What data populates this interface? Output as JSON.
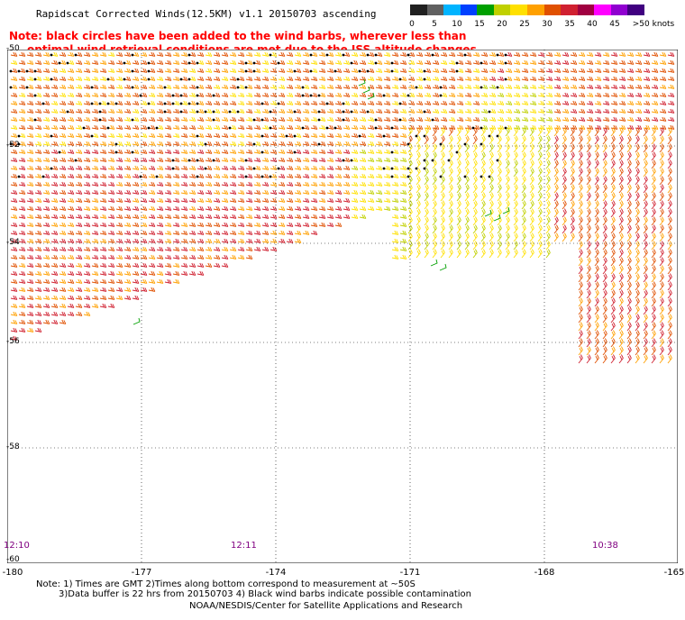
{
  "header": {
    "title": "Rapidscat Corrected Winds(12.5KM) v1.1 20150703 ascending",
    "note_line1": "Note: black circles have been added to the wind barbs, wherever less than",
    "note_line2": "optimal wind retrieval conditions are met due to the ISS altitude changes"
  },
  "scale": {
    "labels": [
      "0",
      "5",
      "10",
      "15",
      "20",
      "25",
      "30",
      "35",
      "40",
      "45",
      ">50 knots"
    ],
    "colors": [
      "#202020",
      "#606060",
      "#00b4ff",
      "#0040ff",
      "#00a000",
      "#c0d000",
      "#ffe000",
      "#ffa000",
      "#e05000",
      "#d02030",
      "#a00040",
      "#ff00ff",
      "#9000d0",
      "#400080"
    ]
  },
  "axes": {
    "y_labels": [
      "-50",
      "-52",
      "-54",
      "-56",
      "-58",
      "-60"
    ],
    "x_labels": [
      "-180",
      "-177",
      "-174",
      "-171",
      "-168",
      "-165"
    ]
  },
  "times": [
    "12:10",
    "12:11",
    "10:38"
  ],
  "footer": {
    "line1": "Note: 1) Times are GMT 2)Times along bottom correspond to measurement at ~50S",
    "line2": "3)Data buffer is 22 hrs from 20150703 4) Black wind barbs indicate possible contamination",
    "line3": "NOAA/NESDIS/Center for Satellite Applications and Research"
  }
}
